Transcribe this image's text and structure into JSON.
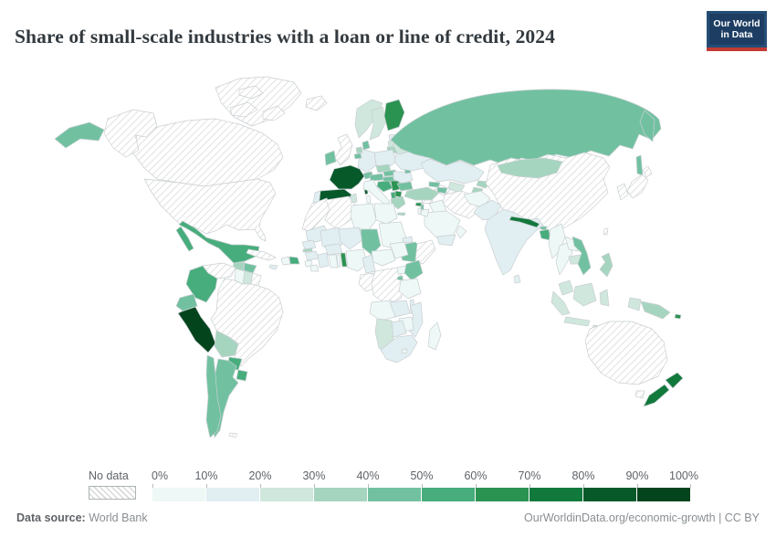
{
  "header": {
    "title": "Share of small-scale industries with a loan or line of credit, 2024",
    "logo": {
      "line1": "Our World",
      "line2": "in Data"
    }
  },
  "colors": {
    "logo_navy": "#1d3d63",
    "logo_red": "#c23b33",
    "hatch_line": "#d9d9d9",
    "border": "#c9cfd2"
  },
  "legend": {
    "no_data_label": "No data",
    "tick_labels": [
      "0%",
      "10%",
      "20%",
      "30%",
      "40%",
      "50%",
      "60%",
      "70%",
      "80%",
      "90%",
      "100%"
    ],
    "bin_colors": [
      "#eef8f6",
      "#e1eef2",
      "#cfe7dc",
      "#a6d5bf",
      "#71c1a1",
      "#47ad7c",
      "#2b9351",
      "#12793c",
      "#07592a",
      "#03441d"
    ]
  },
  "footer": {
    "datasource_label": "Data source:",
    "datasource_value": "World Bank",
    "right": "OurWorldinData.org/economic-growth | CC BY"
  },
  "chart_data": {
    "type": "choropleth-map",
    "title": "Share of small-scale industries with a loan or line of credit, 2024",
    "unit": "%",
    "value_range": [
      0,
      100
    ],
    "bins_step": 10,
    "source": "World Bank",
    "entities": [
      {
        "name": "Russia",
        "value": 45
      },
      {
        "name": "Mexico",
        "value": 52
      },
      {
        "name": "Guatemala",
        "value": 35
      },
      {
        "name": "Honduras",
        "value": 45
      },
      {
        "name": "Nicaragua",
        "value": 45
      },
      {
        "name": "Panama",
        "value": 42
      },
      {
        "name": "Haiti",
        "value": 5
      },
      {
        "name": "Dominican Republic",
        "value": 52
      },
      {
        "name": "Jamaica",
        "value": 15
      },
      {
        "name": "Colombia",
        "value": 52
      },
      {
        "name": "Guyana",
        "value": 5
      },
      {
        "name": "Suriname",
        "value": 22
      },
      {
        "name": "Ecuador",
        "value": 45
      },
      {
        "name": "Peru",
        "value": 93
      },
      {
        "name": "Bolivia",
        "value": 32
      },
      {
        "name": "Paraguay",
        "value": 55
      },
      {
        "name": "Argentina",
        "value": 42
      },
      {
        "name": "Chile",
        "value": 48
      },
      {
        "name": "Uruguay",
        "value": 52
      },
      {
        "name": "Ireland",
        "value": 45
      },
      {
        "name": "Norway",
        "value": 22
      },
      {
        "name": "Sweden",
        "value": 27
      },
      {
        "name": "Finland",
        "value": 62
      },
      {
        "name": "Denmark",
        "value": 40
      },
      {
        "name": "Estonia",
        "value": 15
      },
      {
        "name": "Latvia",
        "value": 25
      },
      {
        "name": "Lithuania",
        "value": 35
      },
      {
        "name": "Poland",
        "value": 15
      },
      {
        "name": "Germany",
        "value": 15
      },
      {
        "name": "Netherlands",
        "value": 35
      },
      {
        "name": "Belgium",
        "value": 45
      },
      {
        "name": "France",
        "value": 87
      },
      {
        "name": "Spain",
        "value": 83
      },
      {
        "name": "Portugal",
        "value": 15
      },
      {
        "name": "Switzerland",
        "value": 45
      },
      {
        "name": "Czechia",
        "value": 35
      },
      {
        "name": "Slovakia",
        "value": 45
      },
      {
        "name": "Austria",
        "value": 45
      },
      {
        "name": "Hungary",
        "value": 45
      },
      {
        "name": "Croatia",
        "value": 58
      },
      {
        "name": "Serbia",
        "value": 68
      },
      {
        "name": "Albania",
        "value": 55
      },
      {
        "name": "North Macedonia",
        "value": 65
      },
      {
        "name": "Greece",
        "value": 35
      },
      {
        "name": "Romania",
        "value": 15
      },
      {
        "name": "Bulgaria",
        "value": 45
      },
      {
        "name": "Moldova",
        "value": 40
      },
      {
        "name": "Ukraine",
        "value": 15
      },
      {
        "name": "Belarus",
        "value": 22
      },
      {
        "name": "Italy",
        "value": 7
      },
      {
        "name": "Turkey",
        "value": 35
      },
      {
        "name": "Georgia",
        "value": 45
      },
      {
        "name": "Armenia",
        "value": 40
      },
      {
        "name": "Cyprus",
        "value": 65
      },
      {
        "name": "Lebanon",
        "value": 45
      },
      {
        "name": "Israel",
        "value": 8
      },
      {
        "name": "Jordan",
        "value": 8
      },
      {
        "name": "Iraq",
        "value": 8
      },
      {
        "name": "Saudi Arabia",
        "value": 8
      },
      {
        "name": "Yemen",
        "value": 12
      },
      {
        "name": "Oman",
        "value": 5
      },
      {
        "name": "Kazakhstan",
        "value": 12
      },
      {
        "name": "Uzbekistan",
        "value": 25
      },
      {
        "name": "Kyrgyzstan",
        "value": 30
      },
      {
        "name": "Tajikistan",
        "value": 35
      },
      {
        "name": "Mongolia",
        "value": 35
      },
      {
        "name": "Afghanistan",
        "value": 5
      },
      {
        "name": "Pakistan",
        "value": 12
      },
      {
        "name": "India",
        "value": 12
      },
      {
        "name": "Nepal",
        "value": 75
      },
      {
        "name": "Bhutan",
        "value": 45
      },
      {
        "name": "Bangladesh",
        "value": 55
      },
      {
        "name": "Sri Lanka",
        "value": 15
      },
      {
        "name": "Myanmar",
        "value": 8
      },
      {
        "name": "Thailand",
        "value": 8
      },
      {
        "name": "Laos",
        "value": 8
      },
      {
        "name": "Cambodia",
        "value": 25
      },
      {
        "name": "Vietnam",
        "value": 45
      },
      {
        "name": "Malaysia",
        "value": 25
      },
      {
        "name": "Indonesia",
        "value": 25
      },
      {
        "name": "Philippines",
        "value": 32
      },
      {
        "name": "Papua New Guinea",
        "value": 35
      },
      {
        "name": "Solomon Islands",
        "value": 65
      },
      {
        "name": "New Zealand",
        "value": 75
      },
      {
        "name": "Tunisia",
        "value": 25
      },
      {
        "name": "Libya",
        "value": 5
      },
      {
        "name": "Egypt",
        "value": 8
      },
      {
        "name": "Mauritania",
        "value": 15
      },
      {
        "name": "Mali",
        "value": 15
      },
      {
        "name": "Niger",
        "value": 15
      },
      {
        "name": "Chad",
        "value": 42
      },
      {
        "name": "Sudan",
        "value": 5
      },
      {
        "name": "Eritrea",
        "value": 15
      },
      {
        "name": "Ethiopia",
        "value": 42
      },
      {
        "name": "Senegal",
        "value": 15
      },
      {
        "name": "Gambia",
        "value": 35
      },
      {
        "name": "Guinea",
        "value": 12
      },
      {
        "name": "Sierra Leone",
        "value": 8
      },
      {
        "name": "Liberia",
        "value": 8
      },
      {
        "name": "Cote d'Ivoire",
        "value": 12
      },
      {
        "name": "Ghana",
        "value": 8
      },
      {
        "name": "Togo",
        "value": 8
      },
      {
        "name": "Benin",
        "value": 65
      },
      {
        "name": "Burkina Faso",
        "value": 15
      },
      {
        "name": "Nigeria",
        "value": 8
      },
      {
        "name": "Cameroon",
        "value": 10
      },
      {
        "name": "Central African Republic",
        "value": 5
      },
      {
        "name": "South Sudan",
        "value": 8
      },
      {
        "name": "Uganda",
        "value": 8
      },
      {
        "name": "Rwanda",
        "value": 45
      },
      {
        "name": "Kenya",
        "value": 42
      },
      {
        "name": "Tanzania",
        "value": 5
      },
      {
        "name": "Angola",
        "value": 8
      },
      {
        "name": "Zambia",
        "value": 12
      },
      {
        "name": "Malawi",
        "value": 18
      },
      {
        "name": "Mozambique",
        "value": 18
      },
      {
        "name": "Zimbabwe",
        "value": 8
      },
      {
        "name": "Botswana",
        "value": 15
      },
      {
        "name": "Namibia",
        "value": 25
      },
      {
        "name": "South Africa",
        "value": 10
      },
      {
        "name": "Lesotho",
        "value": 8
      },
      {
        "name": "Madagascar",
        "value": 5
      }
    ],
    "no_data": [
      "United States",
      "Canada",
      "Alaska",
      "Greenland",
      "Iceland",
      "United Kingdom",
      "Cuba",
      "Venezuela",
      "Brazil",
      "French Guiana",
      "Falkland Islands",
      "China",
      "Japan",
      "South Korea",
      "Taiwan",
      "Iran",
      "Syria",
      "Turkmenistan",
      "Australia",
      "Morocco",
      "Algeria",
      "Somalia",
      "Democratic Republic of Congo",
      "Congo"
    ]
  }
}
